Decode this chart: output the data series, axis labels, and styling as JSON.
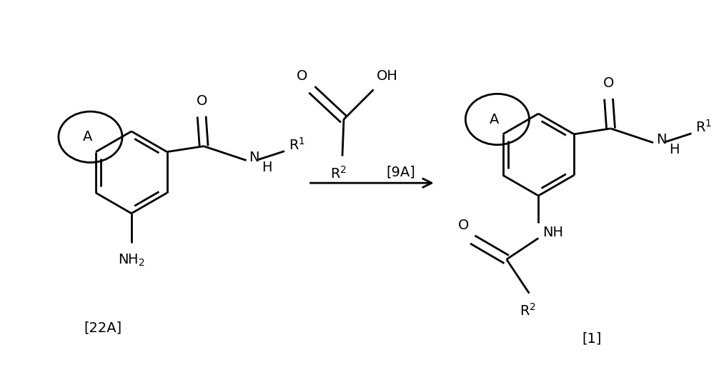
{
  "background_color": "#ffffff",
  "figsize": [
    9.99,
    5.46
  ],
  "dpi": 100,
  "lw": 2.0,
  "fs": 14,
  "reactant_label": "[22A]",
  "reagent_label": "[9A]",
  "product_label": "[1]"
}
